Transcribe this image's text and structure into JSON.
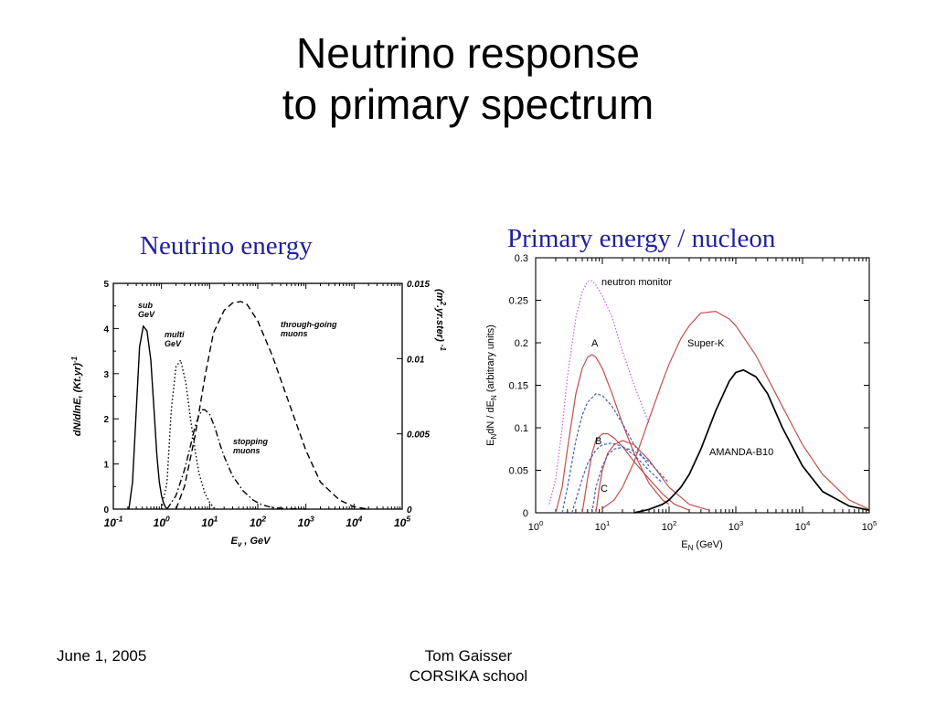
{
  "slide": {
    "title_line1": "Neutrino response",
    "title_line2": "to primary spectrum",
    "caption_left": "Neutrino energy",
    "caption_right": "Primary energy / nucleon",
    "footer_date": "June 1, 2005",
    "footer_author": "Tom Gaisser",
    "footer_event": "CORSIKA school"
  },
  "chart_data": [
    {
      "type": "line",
      "xscale": "log",
      "xlim": [
        0.1,
        100000
      ],
      "ylim": [
        0,
        5
      ],
      "y2lim": [
        0,
        0.015
      ],
      "xticks": [
        "10 -1",
        "10 0",
        "10 1",
        "10 2",
        "10 3",
        "10 4",
        "10 5"
      ],
      "yticks": [
        "0",
        "1",
        "2",
        "3",
        "4",
        "5"
      ],
      "y2ticks": [
        "0",
        "0.005",
        "0.01",
        "0.015"
      ],
      "xlabel": "E ν , GeV",
      "ylabel": "dN/dlnE, (Kt.yr) -1",
      "y2label": "(m 2 .yr.ster) -1",
      "grid": false,
      "series": [
        {
          "name": "sub GeV",
          "label_lines": [
            "sub",
            "GeV"
          ],
          "dash": "solid",
          "axis": "left",
          "x": [
            0.21,
            0.25,
            0.3,
            0.35,
            0.42,
            0.5,
            0.6,
            0.7,
            0.8,
            0.9,
            1.0,
            1.1,
            1.2,
            1.35
          ],
          "y": [
            0,
            0.6,
            2.2,
            3.6,
            4.05,
            3.95,
            3.3,
            2.2,
            1.2,
            0.6,
            0.3,
            0.15,
            0.05,
            0
          ]
        },
        {
          "name": "multi GeV",
          "label_lines": [
            "multi",
            "GeV"
          ],
          "dash": "dot",
          "axis": "left",
          "x": [
            1.0,
            1.3,
            1.6,
            2.0,
            2.5,
            3.2,
            4,
            5,
            6,
            8,
            10,
            13
          ],
          "y": [
            0,
            0.6,
            2.2,
            3.15,
            3.3,
            2.8,
            2.0,
            1.3,
            0.8,
            0.35,
            0.15,
            0
          ]
        },
        {
          "name": "stopping muons",
          "label_lines": [
            "stopping",
            "muons"
          ],
          "dash": "dashdot",
          "axis": "right",
          "x": [
            1.3,
            2,
            3,
            4,
            5,
            6,
            7,
            8,
            10,
            13,
            16,
            20,
            30,
            50,
            80,
            120,
            200,
            400,
            1000
          ],
          "y": [
            0,
            0.0009,
            0.0026,
            0.0042,
            0.0055,
            0.0062,
            0.0066,
            0.0066,
            0.0063,
            0.0054,
            0.0044,
            0.0035,
            0.0022,
            0.0012,
            0.0006,
            0.0003,
            0.0001,
            3e-05,
            0
          ]
        },
        {
          "name": "through-going muons",
          "label_lines": [
            "through-going",
            "muons"
          ],
          "dash": "dash",
          "axis": "right",
          "x": [
            2,
            3,
            5,
            8,
            12,
            20,
            30,
            45,
            60,
            100,
            200,
            500,
            1000,
            2000,
            5000,
            10000,
            20000
          ],
          "y": [
            0,
            0.0015,
            0.0049,
            0.0088,
            0.0117,
            0.0132,
            0.0137,
            0.0138,
            0.0136,
            0.0125,
            0.0102,
            0.0066,
            0.0039,
            0.0018,
            0.0006,
            0.00015,
            0
          ]
        }
      ]
    },
    {
      "type": "line",
      "xscale": "log",
      "xlim": [
        1,
        100000
      ],
      "ylim": [
        0,
        0.3
      ],
      "xticks": [
        "10 0",
        "10 1",
        "10 2",
        "10 3",
        "10 4",
        "10 5"
      ],
      "yticks": [
        "0",
        "0.05",
        "0.1",
        "0.15",
        "0.2",
        "0.25",
        "0.3"
      ],
      "xlabel": "E N (GeV)",
      "ylabel": "E N dN / dE N (arbitrary units)",
      "grid": false,
      "labels": [
        "neutron monitor",
        "A",
        "B",
        "C",
        "Super-K",
        "AMANDA-B10"
      ],
      "series": [
        {
          "name": "neutron monitor",
          "color": "#c060e0",
          "dash": "dot",
          "x": [
            1.6,
            2,
            2.5,
            3,
            4,
            5,
            6,
            7,
            8,
            10,
            14,
            20,
            30,
            50
          ],
          "y": [
            0.01,
            0.04,
            0.1,
            0.16,
            0.23,
            0.26,
            0.272,
            0.273,
            0.268,
            0.255,
            0.23,
            0.19,
            0.15,
            0.105
          ]
        },
        {
          "name": "A",
          "color": "#c0504d",
          "dash": "solid",
          "x": [
            2,
            2.5,
            3,
            4,
            5,
            6,
            7,
            8,
            10,
            14,
            20,
            30,
            50,
            80,
            100
          ],
          "y": [
            0,
            0.03,
            0.075,
            0.14,
            0.17,
            0.183,
            0.186,
            0.183,
            0.17,
            0.14,
            0.105,
            0.07,
            0.035,
            0.015,
            0.01
          ]
        },
        {
          "name": "A (dashed)",
          "color": "#4060c0",
          "dash": "dash",
          "x": [
            2.5,
            3,
            4,
            5,
            6,
            8,
            10,
            14,
            20,
            30,
            50
          ],
          "y": [
            0,
            0.03,
            0.085,
            0.115,
            0.13,
            0.14,
            0.138,
            0.125,
            0.105,
            0.08,
            0.055
          ]
        },
        {
          "name": "B",
          "color": "#c0504d",
          "dash": "solid",
          "x": [
            5,
            6,
            7,
            8,
            10,
            12,
            15,
            20,
            30,
            50,
            80,
            120,
            200
          ],
          "y": [
            0,
            0.04,
            0.07,
            0.085,
            0.093,
            0.093,
            0.088,
            0.078,
            0.06,
            0.04,
            0.022,
            0.01,
            0.003
          ]
        },
        {
          "name": "B (dashed)",
          "color": "#4060c0",
          "dash": "dash",
          "x": [
            3.5,
            4,
            5,
            6,
            8,
            10,
            14,
            20,
            30,
            50,
            80
          ],
          "y": [
            0,
            0.015,
            0.04,
            0.058,
            0.074,
            0.08,
            0.082,
            0.078,
            0.068,
            0.05,
            0.035
          ]
        },
        {
          "name": "C",
          "color": "#c0504d",
          "dash": "solid",
          "x": [
            8,
            9,
            10,
            12,
            15,
            20,
            30,
            50,
            100,
            200,
            400
          ],
          "y": [
            0,
            0.03,
            0.05,
            0.07,
            0.08,
            0.085,
            0.08,
            0.062,
            0.03,
            0.01,
            0.003
          ]
        },
        {
          "name": "C (dashed)",
          "color": "#4060c0",
          "dash": "dash",
          "x": [
            7,
            8,
            10,
            12,
            15,
            20,
            30,
            50,
            100
          ],
          "y": [
            0,
            0.03,
            0.055,
            0.068,
            0.075,
            0.077,
            0.073,
            0.06,
            0.035
          ]
        },
        {
          "name": "Super-K",
          "color": "#c0504d",
          "dash": "solid",
          "x": [
            10,
            15,
            20,
            30,
            50,
            80,
            100,
            150,
            200,
            300,
            500,
            800,
            1000,
            2000,
            5000,
            10000,
            20000,
            50000,
            100000
          ],
          "y": [
            0.005,
            0.015,
            0.03,
            0.06,
            0.11,
            0.155,
            0.175,
            0.205,
            0.22,
            0.235,
            0.237,
            0.228,
            0.22,
            0.185,
            0.125,
            0.08,
            0.045,
            0.015,
            0.004
          ]
        },
        {
          "name": "AMANDA-B10",
          "color": "#000000",
          "dash": "solid",
          "x": [
            30,
            50,
            80,
            100,
            150,
            200,
            300,
            500,
            800,
            1000,
            1300,
            2000,
            3000,
            5000,
            10000,
            20000,
            50000,
            100000
          ],
          "y": [
            0,
            0.004,
            0.01,
            0.015,
            0.03,
            0.045,
            0.075,
            0.12,
            0.155,
            0.165,
            0.168,
            0.16,
            0.14,
            0.1,
            0.055,
            0.025,
            0.008,
            0.003
          ]
        }
      ]
    }
  ]
}
